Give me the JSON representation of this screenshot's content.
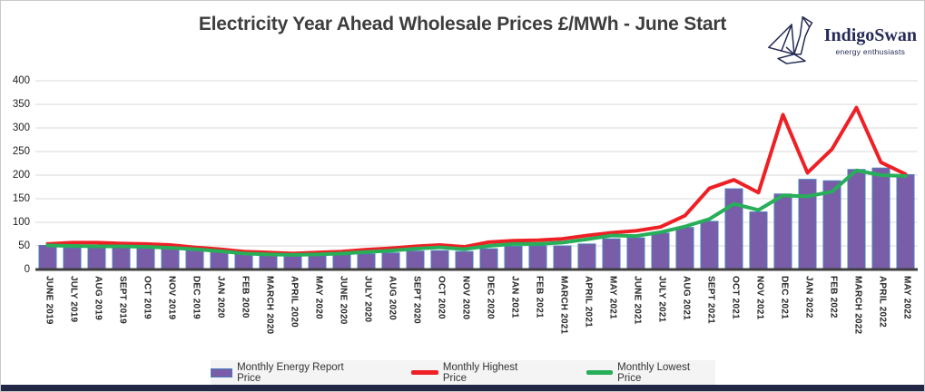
{
  "logo": {
    "name": "IndigoSwan",
    "tagline": "energy enthusiasts"
  },
  "colors": {
    "bar_fill": "#7a5da8",
    "bar_border": "#4a7ebb",
    "highest_line": "#ee2025",
    "lowest_line": "#27ae59",
    "grid": "#d9d9d9",
    "axis": "#3f3f3f",
    "title_text": "#3d3d3d",
    "brand_navy": "#252a56",
    "legend_bg": "#f4f4f4",
    "bottom_bar": "#222745"
  },
  "chart_data": {
    "type": "bar",
    "title": "Electricity Year Ahead Wholesale Prices £/MWh - June Start",
    "xlabel": "",
    "ylabel": "",
    "ylim": [
      0,
      400
    ],
    "yticks": [
      0,
      50,
      100,
      150,
      200,
      250,
      300,
      350,
      400
    ],
    "grid": true,
    "legend_position": "bottom",
    "categories": [
      "JUNE 2019",
      "JULY 2019",
      "AUG 2019",
      "SEPT 2019",
      "OCT 2019",
      "NOV 2019",
      "DEC 2019",
      "JAN 2020",
      "FEB 2020",
      "MARCH 2020",
      "APRIL 2020",
      "MAY 2020",
      "JUNE 2020",
      "JULY 2020",
      "AUG 2020",
      "SEPT 2020",
      "OCT 2020",
      "NOV 2020",
      "DEC 2020",
      "JAN 2021",
      "FEB 2021",
      "MARCH 2021",
      "APRIL 2021",
      "MAY 2021",
      "JUNE 2021",
      "JULY 2021",
      "AUG 2021",
      "SEPT 2021",
      "OCT 2021",
      "NOV 2021",
      "DEC 2021",
      "JAN 2022",
      "FEB 2022",
      "MARCH 2022",
      "APRIL 2022",
      "MAY 2022"
    ],
    "series": [
      {
        "name": "Monthly Energy Report Price",
        "type": "bar",
        "color": "#7a5da8",
        "border_color": "#4a7ebb",
        "values": [
          51,
          46,
          46,
          47,
          45,
          44,
          40,
          37,
          34,
          29,
          28,
          29,
          31,
          33,
          35,
          39,
          40,
          38,
          44,
          49,
          50,
          50,
          54,
          65,
          67,
          77,
          89,
          102,
          171,
          122,
          160,
          191,
          188,
          212,
          215,
          201
        ]
      },
      {
        "name": "Monthly Highest Price",
        "type": "line",
        "color": "#ee2025",
        "values": [
          54,
          57,
          57,
          55,
          54,
          52,
          47,
          43,
          38,
          36,
          34,
          36,
          38,
          42,
          45,
          49,
          52,
          48,
          58,
          61,
          62,
          65,
          72,
          78,
          82,
          90,
          114,
          172,
          190,
          163,
          328,
          205,
          255,
          343,
          227,
          202
        ]
      },
      {
        "name": "Monthly Lowest Price",
        "type": "line",
        "color": "#27ae59",
        "values": [
          51,
          50,
          49,
          49,
          48,
          46,
          43,
          39,
          34,
          32,
          31,
          32,
          34,
          37,
          40,
          44,
          47,
          43,
          50,
          54,
          54,
          57,
          64,
          72,
          71,
          79,
          91,
          107,
          139,
          126,
          157,
          155,
          165,
          210,
          200,
          198
        ]
      }
    ]
  }
}
